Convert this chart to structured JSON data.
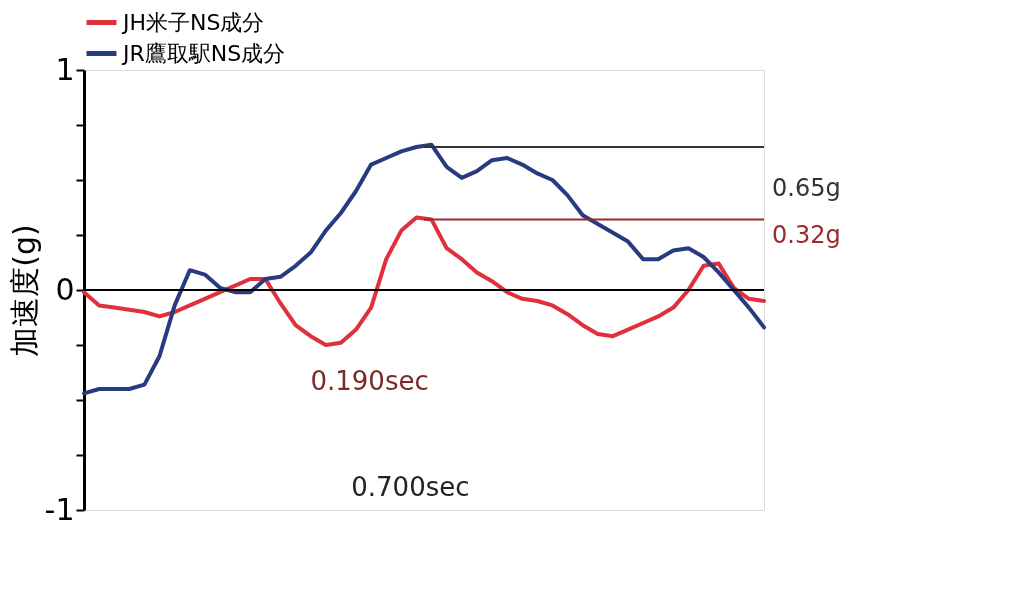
{
  "chart_data": {
    "type": "line",
    "ylabel": "加速度(g)",
    "categories": [
      null,
      null,
      null,
      null,
      null,
      null,
      null,
      null,
      null,
      null,
      null,
      null,
      null,
      null,
      null,
      null,
      null,
      null,
      null,
      null,
      null,
      null,
      null,
      null,
      null,
      null,
      null,
      null,
      null,
      null,
      null,
      null,
      null,
      null,
      null,
      null,
      null,
      null,
      null,
      null,
      null,
      null,
      null,
      null,
      null,
      null
    ],
    "series": [
      {
        "name": "JH米子NS成分",
        "color": "#e0303c",
        "values": [
          -0.01,
          -0.07,
          -0.08,
          -0.09,
          -0.1,
          -0.12,
          -0.1,
          -0.07,
          -0.04,
          -0.01,
          0.02,
          0.05,
          0.05,
          -0.06,
          -0.16,
          -0.21,
          -0.25,
          -0.24,
          -0.18,
          -0.08,
          0.14,
          0.27,
          0.33,
          0.32,
          0.19,
          0.14,
          0.08,
          0.04,
          -0.01,
          -0.04,
          -0.05,
          -0.07,
          -0.11,
          -0.16,
          -0.2,
          -0.21,
          -0.18,
          -0.15,
          -0.12,
          -0.08,
          0.0,
          0.11,
          0.12,
          0.01,
          -0.04,
          -0.05
        ]
      },
      {
        "name": "JR鷹取駅NS成分",
        "color": "#283a80",
        "values": [
          -0.47,
          -0.45,
          -0.45,
          -0.45,
          -0.43,
          -0.3,
          -0.07,
          0.09,
          0.07,
          0.01,
          -0.01,
          -0.01,
          0.05,
          0.06,
          0.11,
          0.17,
          0.27,
          0.35,
          0.45,
          0.57,
          0.6,
          0.63,
          0.65,
          0.66,
          0.56,
          0.51,
          0.54,
          0.59,
          0.6,
          0.57,
          0.53,
          0.5,
          0.43,
          0.34,
          0.3,
          0.26,
          0.22,
          0.14,
          0.14,
          0.18,
          0.19,
          0.15,
          0.08,
          0.0,
          -0.08,
          -0.17
        ]
      }
    ],
    "ylim": [
      -1,
      1
    ],
    "yticks": [
      -1,
      {
        "value": -0.75,
        "label": null
      },
      {
        "value": -0.5,
        "label": null
      },
      {
        "value": -0.25,
        "label": null
      },
      0,
      {
        "value": 0.25,
        "label": null
      },
      {
        "value": 0.5,
        "label": null
      },
      {
        "value": 0.75,
        "label": null
      },
      1
    ],
    "ref_lines": [
      {
        "axis": "y",
        "value": 0,
        "label": null,
        "color": "#000000"
      },
      {
        "axis": "y",
        "value": 0.65,
        "label": "0.65g",
        "color": "#333333"
      },
      {
        "axis": "y",
        "value": 0.32,
        "label": "0.32g",
        "color": "#9a2a30"
      }
    ],
    "annotations": [
      "0.190sec",
      "0.700sec"
    ],
    "tick_labels": "y",
    "grid": false,
    "legend": "top",
    "line_style": "solid",
    "marker": "none"
  }
}
